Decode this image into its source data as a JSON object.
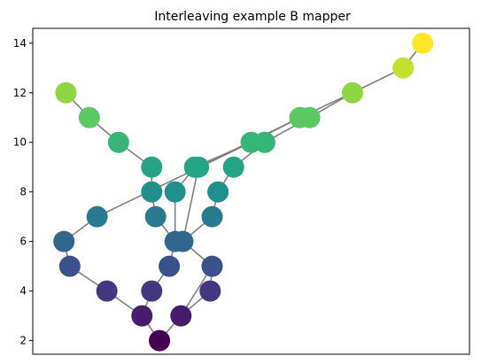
{
  "chart_data": {
    "type": "scatter",
    "title": "Interleaving example B mapper",
    "xlabel": "",
    "ylabel": "",
    "ylim": [
      1.45,
      14.6
    ],
    "xlim": [
      -0.6,
      10.6
    ],
    "yticks": [
      2,
      4,
      6,
      8,
      10,
      12,
      14
    ],
    "xticks_visible": false,
    "grid": false,
    "legend": "none",
    "colormap": "viridis",
    "edge_color": "#808080",
    "nodes": [
      {
        "id": 0,
        "x": 2.65,
        "y": 2
      },
      {
        "id": 1,
        "x": 2.2,
        "y": 3
      },
      {
        "id": 2,
        "x": 3.2,
        "y": 3
      },
      {
        "id": 3,
        "x": 1.3,
        "y": 4
      },
      {
        "id": 4,
        "x": 2.45,
        "y": 4
      },
      {
        "id": 5,
        "x": 3.95,
        "y": 4
      },
      {
        "id": 6,
        "x": 0.35,
        "y": 5
      },
      {
        "id": 7,
        "x": 2.9,
        "y": 5
      },
      {
        "id": 8,
        "x": 4.0,
        "y": 5
      },
      {
        "id": 9,
        "x": 0.2,
        "y": 6
      },
      {
        "id": 10,
        "x": 3.05,
        "y": 6
      },
      {
        "id": 11,
        "x": 3.25,
        "y": 6
      },
      {
        "id": 12,
        "x": 1.05,
        "y": 7
      },
      {
        "id": 13,
        "x": 2.55,
        "y": 7
      },
      {
        "id": 14,
        "x": 4.0,
        "y": 7
      },
      {
        "id": 15,
        "x": 2.45,
        "y": 8
      },
      {
        "id": 16,
        "x": 3.05,
        "y": 8
      },
      {
        "id": 17,
        "x": 4.15,
        "y": 8
      },
      {
        "id": 18,
        "x": 2.45,
        "y": 9
      },
      {
        "id": 19,
        "x": 3.55,
        "y": 9
      },
      {
        "id": 20,
        "x": 3.65,
        "y": 9
      },
      {
        "id": 21,
        "x": 4.55,
        "y": 9
      },
      {
        "id": 22,
        "x": 1.6,
        "y": 10
      },
      {
        "id": 23,
        "x": 5.0,
        "y": 10
      },
      {
        "id": 24,
        "x": 5.35,
        "y": 10
      },
      {
        "id": 25,
        "x": 0.85,
        "y": 11
      },
      {
        "id": 26,
        "x": 6.25,
        "y": 11
      },
      {
        "id": 27,
        "x": 6.5,
        "y": 11
      },
      {
        "id": 28,
        "x": 0.25,
        "y": 12
      },
      {
        "id": 29,
        "x": 7.6,
        "y": 12
      },
      {
        "id": 30,
        "x": 8.9,
        "y": 13
      },
      {
        "id": 31,
        "x": 9.4,
        "y": 14
      }
    ],
    "edges": [
      [
        0,
        1
      ],
      [
        0,
        2
      ],
      [
        1,
        4
      ],
      [
        1,
        3
      ],
      [
        2,
        5
      ],
      [
        2,
        8
      ],
      [
        3,
        6
      ],
      [
        6,
        9
      ],
      [
        9,
        12
      ],
      [
        12,
        23
      ],
      [
        23,
        26
      ],
      [
        4,
        7
      ],
      [
        7,
        10
      ],
      [
        10,
        13
      ],
      [
        13,
        15
      ],
      [
        15,
        18
      ],
      [
        18,
        22
      ],
      [
        22,
        25
      ],
      [
        25,
        28
      ],
      [
        5,
        8
      ],
      [
        8,
        11
      ],
      [
        11,
        14
      ],
      [
        14,
        17
      ],
      [
        17,
        21
      ],
      [
        21,
        24
      ],
      [
        24,
        27
      ],
      [
        10,
        16
      ],
      [
        16,
        19
      ],
      [
        19,
        23
      ],
      [
        11,
        20
      ],
      [
        20,
        26
      ],
      [
        26,
        29
      ],
      [
        27,
        29
      ],
      [
        29,
        30
      ],
      [
        30,
        31
      ]
    ]
  }
}
